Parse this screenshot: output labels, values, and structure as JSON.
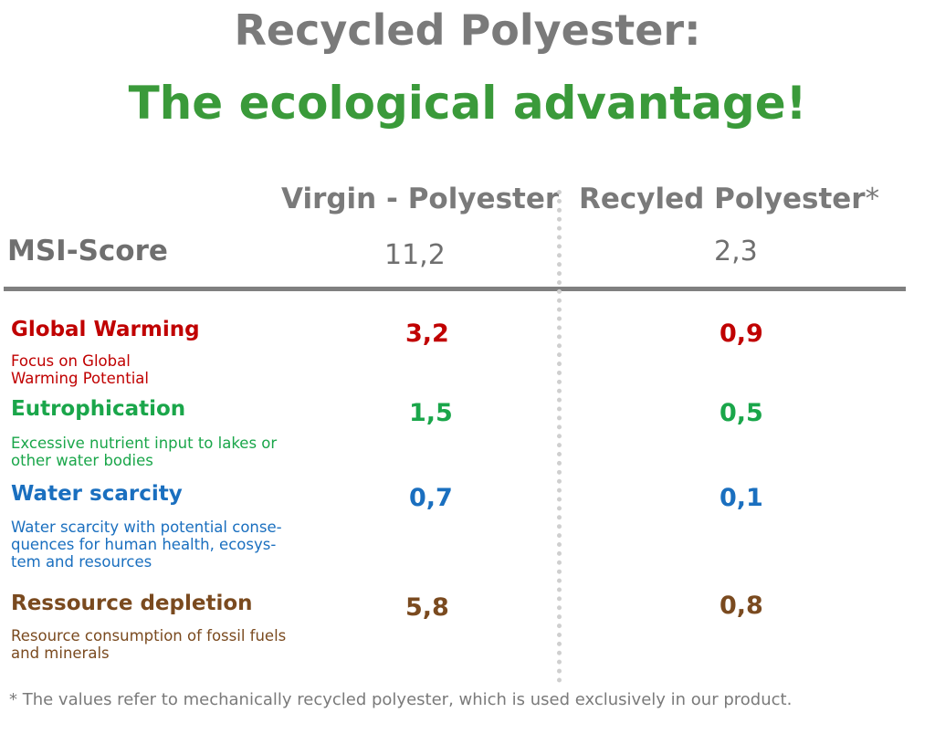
{
  "title": {
    "line1": "Recycled Polyester:",
    "line2": "The ecological advantage!"
  },
  "columns": {
    "virgin": "Virgin - Polyester",
    "recycled": "Recyled Polyester",
    "recycled_marker": "*"
  },
  "msi": {
    "label": "MSI-Score",
    "virgin": "11,2",
    "recycled": "2,3"
  },
  "categories": [
    {
      "title": "Global Warming",
      "description": "Focus on Global Warming Potential",
      "virgin": "3,2",
      "recycled": "0,9",
      "color": "#c00000"
    },
    {
      "title": "Eutrophication",
      "description": "Excessive nutrient input to lakes or other water bodies",
      "virgin": "1,5",
      "recycled": "0,5",
      "color": "#1aa64a"
    },
    {
      "title": "Water scarcity",
      "description": "Water scarcity with potential conse-quences for human health, ecosys-tem and resources",
      "virgin": "0,7",
      "recycled": "0,1",
      "color": "#1a6fbf"
    },
    {
      "title": "Ressource depletion",
      "description": "Resource consumption of fossil fuels and minerals",
      "virgin": "5,8",
      "recycled": "0,8",
      "color": "#7a4a1f"
    }
  ],
  "footnote": "* The values refer to mechanically recycled polyester, which is used exclusively in our product."
}
